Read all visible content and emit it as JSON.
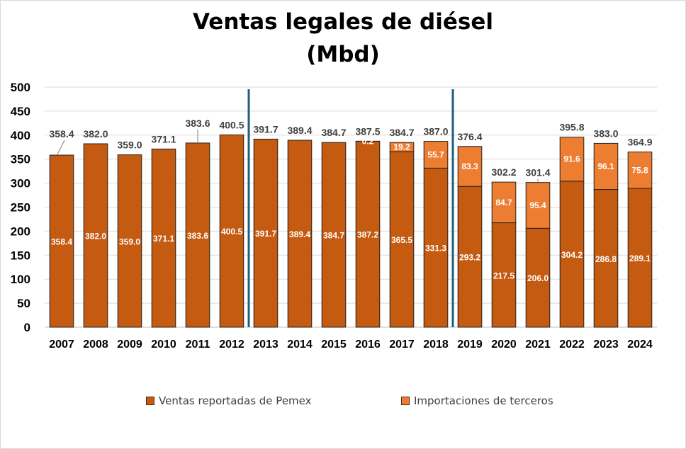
{
  "title": {
    "line1": "Ventas legales de diésel",
    "line2": "(Mbd)"
  },
  "colors": {
    "pemex": "#C55A11",
    "terceros": "#ED7D31",
    "divider": "#1F5F7A",
    "grid": "#d9d9d9",
    "outline": "#222222"
  },
  "chart_data": {
    "type": "bar",
    "stacked": true,
    "categories": [
      "2007",
      "2008",
      "2009",
      "2010",
      "2011",
      "2012",
      "2013",
      "2014",
      "2015",
      "2016",
      "2017",
      "2018",
      "2019",
      "2020",
      "2021",
      "2022",
      "2023",
      "2024"
    ],
    "series": [
      {
        "name": "Ventas reportadas de Pemex",
        "values": [
          358.4,
          382.0,
          359.0,
          371.1,
          383.6,
          400.5,
          391.7,
          389.4,
          384.7,
          387.2,
          365.5,
          331.3,
          293.2,
          217.5,
          206.0,
          304.2,
          286.8,
          289.1
        ]
      },
      {
        "name": "Importaciones de terceros",
        "values": [
          null,
          null,
          null,
          null,
          null,
          null,
          null,
          null,
          null,
          0.2,
          19.2,
          55.7,
          83.3,
          84.7,
          95.4,
          91.6,
          96.1,
          75.8
        ]
      }
    ],
    "totals": [
      358.4,
      382.0,
      359.0,
      371.1,
      383.6,
      400.5,
      391.7,
      389.4,
      384.7,
      387.5,
      384.7,
      387.0,
      376.4,
      302.2,
      301.4,
      395.8,
      383.0,
      364.9
    ],
    "ylim": [
      0,
      500
    ],
    "yticks": [
      0,
      50,
      100,
      150,
      200,
      250,
      300,
      350,
      400,
      450,
      500
    ],
    "grid": true,
    "legend_position": "bottom",
    "dividers_after": [
      "2012",
      "2018"
    ]
  },
  "legend": {
    "pemex": "Ventas reportadas de Pemex",
    "terceros": "Importaciones de terceros"
  }
}
